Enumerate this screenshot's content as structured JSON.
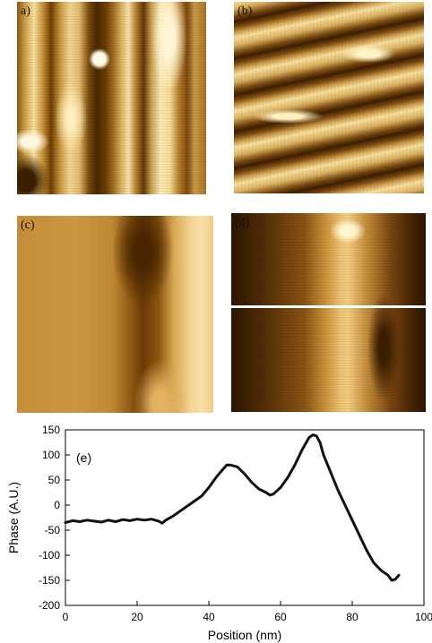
{
  "panels": [
    {
      "id": "a",
      "label": "a)"
    },
    {
      "id": "b",
      "label": "(b)"
    },
    {
      "id": "c",
      "label": "(c)"
    },
    {
      "id": "d",
      "label": "(d)"
    }
  ],
  "colors": {
    "line": "#111111",
    "axis": "#000000",
    "afm_dark": "#3c1e00",
    "afm_light": "#f6e2a8"
  },
  "chart_data": {
    "type": "line",
    "panel_label": "(e)",
    "xlabel": "Position (nm)",
    "ylabel": "Phase (A.U.)",
    "xlim": [
      0,
      100
    ],
    "ylim": [
      -200,
      150
    ],
    "xticks": [
      0,
      20,
      40,
      60,
      80,
      100
    ],
    "yticks": [
      150,
      100,
      50,
      0,
      -50,
      -100,
      -150,
      -200
    ],
    "grid": false,
    "series": [
      {
        "x": [
          0,
          2,
          4,
          6,
          8,
          10,
          12,
          14,
          16,
          18,
          20,
          22,
          24,
          26,
          27,
          28,
          30,
          32,
          34,
          36,
          38,
          40,
          42,
          44,
          45,
          46,
          48,
          50,
          52,
          54,
          56,
          57,
          58,
          60,
          62,
          64,
          66,
          68,
          69,
          70,
          71,
          72,
          74,
          76,
          78,
          80,
          82,
          84,
          86,
          88,
          90,
          91,
          92,
          93
        ],
        "y": [
          -35,
          -31,
          -33,
          -30,
          -32,
          -34,
          -30,
          -33,
          -29,
          -31,
          -28,
          -30,
          -28,
          -32,
          -36,
          -30,
          -22,
          -12,
          -2,
          8,
          18,
          35,
          55,
          72,
          80,
          80,
          76,
          62,
          45,
          32,
          25,
          20,
          22,
          35,
          55,
          80,
          110,
          135,
          140,
          138,
          125,
          100,
          65,
          30,
          0,
          -30,
          -60,
          -90,
          -115,
          -130,
          -140,
          -150,
          -148,
          -140
        ]
      }
    ]
  }
}
